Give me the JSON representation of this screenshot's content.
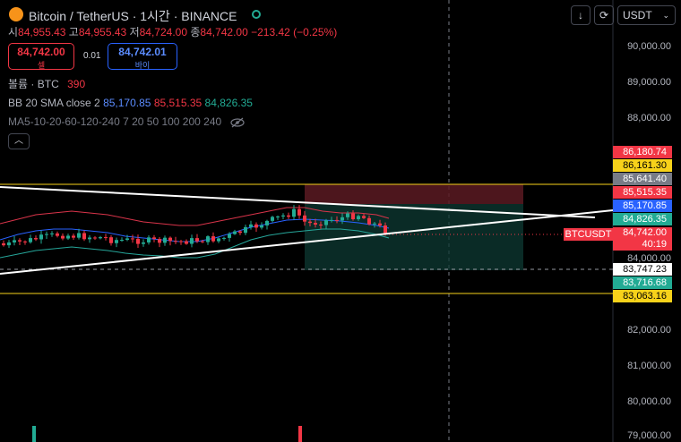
{
  "header": {
    "symbol_title": "Bitcoin / TetherUS",
    "interval": "1시간",
    "exchange": "BINANCE",
    "sep": "·"
  },
  "ohlc": {
    "open_label": "시",
    "open": "84,955.43",
    "high_label": "고",
    "high": "84,955.43",
    "low_label": "저",
    "low": "84,724.00",
    "close_label": "종",
    "close": "84,742.00",
    "change": "−213.42 (−0.25%)"
  },
  "trade": {
    "sell_price": "84,742.00",
    "sell_label": "셀",
    "spread": "0.01",
    "buy_price": "84,742.01",
    "buy_label": "바이"
  },
  "volume": {
    "label": "볼륨 · BTC",
    "value": "390"
  },
  "bb": {
    "label": "BB 20 SMA close 2",
    "basis": "85,170.85",
    "upper": "85,515.35",
    "lower": "84,826.35"
  },
  "ma": {
    "label": "MA5-10-20-60-120-240 7 20 50 100 200 240"
  },
  "controls": {
    "download": "↓",
    "refresh": "⟳",
    "currency": "USDT"
  },
  "price_axis": {
    "ticks": [
      "90,000.00",
      "89,000.00",
      "88,000.00",
      "84,000.00",
      "82,000.00",
      "81,000.00",
      "80,000.00",
      "79,000.00"
    ]
  },
  "labels": {
    "l1": "86,180.74",
    "l2": "86,161.30",
    "l3": "85,641.40",
    "l4": "85,515.35",
    "l5": "85,170.85",
    "l6": "84,826.35",
    "l7": "84,742.00",
    "l8": "40:19",
    "l9": "83,747.23",
    "l10": "83,716.68",
    "l11": "83,063.16",
    "symbol_tag": "BTCUSDT"
  },
  "colors": {
    "up": "#22ab94",
    "down": "#f23645",
    "bb_basis": "#2962ff",
    "yellow": "#f7d21a",
    "upper_band": "#e0334a",
    "lower_band": "#26a69a"
  }
}
